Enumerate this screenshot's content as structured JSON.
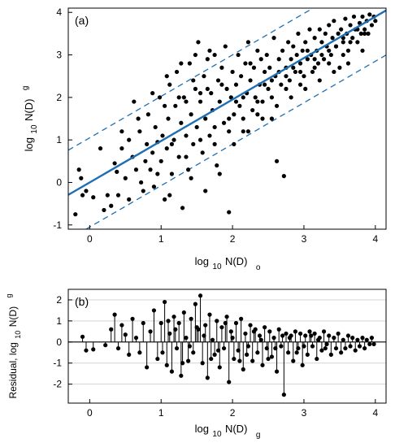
{
  "chart_data": [
    {
      "type": "scatter",
      "panel_label": "(a)",
      "xlabel": {
        "prefix": "log",
        "sub": "10",
        "main": "N(D)",
        "tail": "o"
      },
      "ylabel": {
        "prefix": "log",
        "sub": "10",
        "main": "N(D)",
        "tail": "g"
      },
      "xlim": [
        -0.3,
        4.15
      ],
      "ylim": [
        -1.1,
        4.1
      ],
      "xticks": [
        "0",
        "1",
        "2",
        "3",
        "4"
      ],
      "yticks": [
        "-1",
        "0",
        "1",
        "2",
        "3",
        "4"
      ],
      "grid": false,
      "colors": {
        "points": "#000000",
        "fit": "#1f6fb4",
        "bounds": "#1f6fb4"
      },
      "fit_line": {
        "slope": 0.975,
        "intercept": 0.0,
        "style": "solid"
      },
      "bound_lines": [
        {
          "offset": 1.05,
          "style": "dashed"
        },
        {
          "offset": -1.05,
          "style": "dashed"
        }
      ],
      "points": [
        [
          -0.2,
          -0.75
        ],
        [
          -0.15,
          0.3
        ],
        [
          -0.12,
          0.1
        ],
        [
          -0.1,
          -0.3
        ],
        [
          -0.05,
          -0.2
        ],
        [
          0.05,
          -0.35
        ],
        [
          0.2,
          -0.65
        ],
        [
          0.25,
          -0.3
        ],
        [
          0.3,
          -0.55
        ],
        [
          0.35,
          0.45
        ],
        [
          0.38,
          0.25
        ],
        [
          0.4,
          -0.3
        ],
        [
          0.45,
          0.8
        ],
        [
          0.5,
          0.1
        ],
        [
          0.55,
          -0.4
        ],
        [
          0.55,
          1.0
        ],
        [
          0.6,
          0.6
        ],
        [
          0.65,
          0.3
        ],
        [
          0.7,
          1.2
        ],
        [
          0.72,
          0.0
        ],
        [
          0.75,
          -0.2
        ],
        [
          0.78,
          0.5
        ],
        [
          0.8,
          0.9
        ],
        [
          0.82,
          1.6
        ],
        [
          0.85,
          0.3
        ],
        [
          0.88,
          0.7
        ],
        [
          0.9,
          -0.1
        ],
        [
          0.92,
          1.3
        ],
        [
          0.95,
          0.95
        ],
        [
          0.98,
          2.0
        ],
        [
          1.0,
          0.5
        ],
        [
          1.02,
          1.1
        ],
        [
          1.05,
          -0.4
        ],
        [
          1.08,
          0.8
        ],
        [
          1.1,
          1.5
        ],
        [
          1.12,
          2.3
        ],
        [
          1.15,
          0.2
        ],
        [
          1.18,
          1.0
        ],
        [
          1.2,
          1.8
        ],
        [
          1.22,
          2.6
        ],
        [
          1.25,
          0.6
        ],
        [
          1.28,
          1.4
        ],
        [
          1.3,
          -0.6
        ],
        [
          1.32,
          2.0
        ],
        [
          1.35,
          1.1
        ],
        [
          1.38,
          0.3
        ],
        [
          1.4,
          2.8
        ],
        [
          1.42,
          1.6
        ],
        [
          1.45,
          0.9
        ],
        [
          1.48,
          2.2
        ],
        [
          1.5,
          1.3
        ],
        [
          1.52,
          3.3
        ],
        [
          1.55,
          1.9
        ],
        [
          1.58,
          0.7
        ],
        [
          1.6,
          2.5
        ],
        [
          1.62,
          1.5
        ],
        [
          1.65,
          2.9
        ],
        [
          1.68,
          1.1
        ],
        [
          1.7,
          2.1
        ],
        [
          1.72,
          1.7
        ],
        [
          1.75,
          3.0
        ],
        [
          1.78,
          0.4
        ],
        [
          1.8,
          2.4
        ],
        [
          1.82,
          1.9
        ],
        [
          1.85,
          2.7
        ],
        [
          1.88,
          1.4
        ],
        [
          1.9,
          3.2
        ],
        [
          1.92,
          2.2
        ],
        [
          1.95,
          -0.7
        ],
        [
          1.98,
          2.0
        ],
        [
          2.0,
          2.6
        ],
        [
          2.02,
          1.6
        ],
        [
          2.05,
          2.3
        ],
        [
          2.08,
          3.0
        ],
        [
          2.1,
          1.8
        ],
        [
          2.12,
          2.5
        ],
        [
          2.15,
          1.2
        ],
        [
          2.18,
          2.8
        ],
        [
          2.2,
          2.1
        ],
        [
          2.22,
          3.3
        ],
        [
          2.25,
          2.4
        ],
        [
          2.28,
          1.7
        ],
        [
          2.3,
          2.7
        ],
        [
          2.32,
          2.0
        ],
        [
          2.35,
          3.1
        ],
        [
          2.38,
          2.3
        ],
        [
          2.4,
          2.9
        ],
        [
          2.42,
          1.9
        ],
        [
          2.45,
          2.6
        ],
        [
          2.48,
          3.0
        ],
        [
          2.5,
          2.2
        ],
        [
          2.52,
          2.7
        ],
        [
          2.55,
          1.5
        ],
        [
          2.58,
          3.4
        ],
        [
          2.6,
          2.5
        ],
        [
          2.62,
          0.5
        ],
        [
          2.65,
          2.9
        ],
        [
          2.68,
          2.3
        ],
        [
          2.7,
          3.1
        ],
        [
          2.72,
          0.15
        ],
        [
          2.75,
          2.7
        ],
        [
          2.78,
          3.3
        ],
        [
          2.8,
          2.4
        ],
        [
          2.82,
          2.9
        ],
        [
          2.85,
          3.2
        ],
        [
          2.88,
          2.6
        ],
        [
          2.9,
          3.0
        ],
        [
          2.92,
          3.5
        ],
        [
          2.95,
          2.8
        ],
        [
          2.98,
          3.1
        ],
        [
          3.0,
          2.5
        ],
        [
          3.02,
          3.3
        ],
        [
          3.05,
          2.9
        ],
        [
          3.08,
          3.6
        ],
        [
          3.1,
          3.0
        ],
        [
          3.12,
          2.6
        ],
        [
          3.15,
          3.4
        ],
        [
          3.18,
          3.1
        ],
        [
          3.2,
          2.8
        ],
        [
          3.22,
          3.6
        ],
        [
          3.25,
          3.3
        ],
        [
          3.28,
          2.9
        ],
        [
          3.3,
          3.5
        ],
        [
          3.32,
          3.2
        ],
        [
          3.35,
          3.7
        ],
        [
          3.38,
          3.0
        ],
        [
          3.4,
          3.4
        ],
        [
          3.42,
          3.8
        ],
        [
          3.45,
          3.2
        ],
        [
          3.48,
          3.5
        ],
        [
          3.5,
          2.7
        ],
        [
          3.52,
          3.6
        ],
        [
          3.55,
          3.3
        ],
        [
          3.58,
          3.85
        ],
        [
          3.6,
          3.5
        ],
        [
          3.62,
          3.1
        ],
        [
          3.65,
          3.7
        ],
        [
          3.68,
          3.4
        ],
        [
          3.7,
          3.9
        ],
        [
          3.72,
          3.6
        ],
        [
          3.75,
          3.3
        ],
        [
          3.78,
          3.75
        ],
        [
          3.8,
          3.5
        ],
        [
          3.82,
          3.9
        ],
        [
          3.85,
          3.6
        ],
        [
          3.88,
          3.8
        ],
        [
          3.9,
          3.5
        ],
        [
          3.92,
          3.95
        ],
        [
          3.95,
          3.7
        ],
        [
          3.98,
          3.9
        ],
        [
          1.35,
          1.9
        ],
        [
          1.55,
          2.1
        ],
        [
          1.75,
          1.3
        ],
        [
          1.95,
          1.5
        ],
        [
          2.15,
          2.0
        ],
        [
          2.35,
          1.6
        ],
        [
          2.55,
          2.0
        ],
        [
          2.75,
          2.2
        ],
        [
          2.95,
          2.3
        ],
        [
          3.15,
          2.7
        ],
        [
          3.35,
          2.8
        ],
        [
          3.55,
          3.0
        ],
        [
          1.05,
          1.8
        ],
        [
          1.25,
          2.0
        ],
        [
          1.45,
          2.4
        ],
        [
          1.65,
          2.2
        ],
        [
          1.85,
          2.3
        ],
        [
          2.05,
          1.9
        ],
        [
          2.25,
          2.8
        ],
        [
          2.45,
          2.3
        ],
        [
          2.65,
          2.6
        ],
        [
          2.85,
          2.7
        ],
        [
          3.05,
          3.1
        ],
        [
          3.25,
          3.0
        ],
        [
          3.45,
          3.2
        ],
        [
          3.65,
          3.3
        ],
        [
          3.85,
          3.5
        ],
        [
          0.95,
          0.2
        ],
        [
          1.15,
          0.9
        ],
        [
          1.35,
          0.6
        ],
        [
          1.55,
          1.0
        ],
        [
          1.75,
          0.9
        ],
        [
          1.95,
          1.2
        ],
        [
          2.15,
          1.5
        ],
        [
          2.35,
          1.9
        ],
        [
          2.55,
          2.4
        ],
        [
          2.75,
          2.5
        ],
        [
          2.95,
          2.6
        ],
        [
          3.15,
          2.9
        ],
        [
          3.35,
          3.1
        ],
        [
          3.55,
          3.4
        ],
        [
          3.75,
          3.6
        ],
        [
          0.68,
          1.5
        ],
        [
          0.88,
          2.1
        ],
        [
          1.08,
          2.5
        ],
        [
          1.28,
          2.8
        ],
        [
          1.48,
          3.0
        ],
        [
          1.68,
          3.1
        ],
        [
          0.15,
          0.8
        ],
        [
          0.45,
          1.2
        ],
        [
          0.62,
          1.9
        ],
        [
          1.12,
          -0.3
        ],
        [
          1.42,
          0.1
        ],
        [
          1.62,
          -0.2
        ],
        [
          1.82,
          0.2
        ],
        [
          2.02,
          0.9
        ],
        [
          2.22,
          1.2
        ],
        [
          2.42,
          1.5
        ],
        [
          2.62,
          1.8
        ],
        [
          2.82,
          2.0
        ],
        [
          3.02,
          2.2
        ],
        [
          3.22,
          2.4
        ],
        [
          3.42,
          2.6
        ],
        [
          3.62,
          2.8
        ],
        [
          3.82,
          3.1
        ],
        [
          4.0,
          3.8
        ]
      ]
    },
    {
      "type": "scatter",
      "style": "stem",
      "panel_label": "(b)",
      "xlabel": {
        "prefix": "log",
        "sub": "10",
        "main": "N(D)",
        "tail": "g"
      },
      "ylabel": {
        "prefix": "Residual, log",
        "sub": "10",
        "main": "N(D)",
        "tail": "g"
      },
      "xlim": [
        -0.3,
        4.15
      ],
      "ylim": [
        -2.9,
        2.5
      ],
      "xticks": [
        "0",
        "1",
        "2",
        "3",
        "4"
      ],
      "yticks": [
        "-2",
        "-1",
        "0",
        "1",
        "2"
      ],
      "grid": true,
      "colors": {
        "points": "#000000",
        "zero_line": "#000000",
        "grid": "#d3d3d3"
      },
      "points": [
        [
          -0.1,
          0.25
        ],
        [
          -0.05,
          -0.4
        ],
        [
          0.05,
          -0.35
        ],
        [
          0.22,
          -0.15
        ],
        [
          0.3,
          0.6
        ],
        [
          0.35,
          1.3
        ],
        [
          0.4,
          -0.3
        ],
        [
          0.45,
          0.8
        ],
        [
          0.5,
          0.35
        ],
        [
          0.55,
          -0.6
        ],
        [
          0.6,
          1.1
        ],
        [
          0.65,
          0.2
        ],
        [
          0.7,
          -0.5
        ],
        [
          0.75,
          0.9
        ],
        [
          0.8,
          -1.2
        ],
        [
          0.85,
          0.5
        ],
        [
          0.9,
          1.5
        ],
        [
          0.95,
          -0.8
        ],
        [
          1.0,
          0.9
        ],
        [
          1.05,
          1.9
        ],
        [
          1.08,
          -1.1
        ],
        [
          1.12,
          0.4
        ],
        [
          1.15,
          -1.4
        ],
        [
          1.18,
          1.2
        ],
        [
          1.22,
          -0.3
        ],
        [
          1.25,
          0.9
        ],
        [
          1.28,
          -1.6
        ],
        [
          1.32,
          1.4
        ],
        [
          1.35,
          0.2
        ],
        [
          1.38,
          -0.9
        ],
        [
          1.42,
          1.1
        ],
        [
          1.45,
          -0.5
        ],
        [
          1.48,
          1.8
        ],
        [
          1.52,
          0.6
        ],
        [
          1.55,
          2.2
        ],
        [
          1.58,
          -1.0
        ],
        [
          1.62,
          0.8
        ],
        [
          1.65,
          -1.7
        ],
        [
          1.68,
          1.3
        ],
        [
          1.72,
          0.1
        ],
        [
          1.75,
          -0.6
        ],
        [
          1.78,
          1.0
        ],
        [
          1.82,
          -1.2
        ],
        [
          1.85,
          0.7
        ],
        [
          1.88,
          -0.3
        ],
        [
          1.92,
          1.2
        ],
        [
          1.95,
          -1.9
        ],
        [
          1.98,
          0.5
        ],
        [
          2.02,
          -0.8
        ],
        [
          2.05,
          0.9
        ],
        [
          2.08,
          -0.4
        ],
        [
          2.12,
          1.1
        ],
        [
          2.15,
          -1.3
        ],
        [
          2.18,
          0.4
        ],
        [
          2.22,
          -0.2
        ],
        [
          2.25,
          0.8
        ],
        [
          2.28,
          -0.9
        ],
        [
          2.32,
          0.6
        ],
        [
          2.35,
          -0.5
        ],
        [
          2.38,
          0.3
        ],
        [
          2.42,
          -1.1
        ],
        [
          2.45,
          0.7
        ],
        [
          2.48,
          -0.3
        ],
        [
          2.52,
          0.5
        ],
        [
          2.55,
          -0.7
        ],
        [
          2.58,
          0.2
        ],
        [
          2.62,
          -1.4
        ],
        [
          2.65,
          0.6
        ],
        [
          2.68,
          -0.2
        ],
        [
          2.72,
          -2.5
        ],
        [
          2.75,
          0.4
        ],
        [
          2.78,
          -0.5
        ],
        [
          2.82,
          0.3
        ],
        [
          2.85,
          -0.9
        ],
        [
          2.88,
          0.5
        ],
        [
          2.92,
          -0.3
        ],
        [
          2.95,
          0.4
        ],
        [
          2.98,
          -1.1
        ],
        [
          3.02,
          0.3
        ],
        [
          3.05,
          -0.6
        ],
        [
          3.08,
          0.5
        ],
        [
          3.12,
          -0.2
        ],
        [
          3.15,
          0.4
        ],
        [
          3.18,
          -0.8
        ],
        [
          3.22,
          0.2
        ],
        [
          3.25,
          -0.4
        ],
        [
          3.28,
          0.5
        ],
        [
          3.32,
          -0.1
        ],
        [
          3.35,
          0.3
        ],
        [
          3.38,
          -0.6
        ],
        [
          3.42,
          0.2
        ],
        [
          3.45,
          -0.3
        ],
        [
          3.48,
          0.4
        ],
        [
          3.52,
          -0.5
        ],
        [
          3.55,
          0.1
        ],
        [
          3.58,
          -0.3
        ],
        [
          3.62,
          0.3
        ],
        [
          3.65,
          -0.2
        ],
        [
          3.68,
          0.2
        ],
        [
          3.72,
          -0.4
        ],
        [
          3.75,
          0.1
        ],
        [
          3.78,
          -0.2
        ],
        [
          3.82,
          0.2
        ],
        [
          3.85,
          -0.3
        ],
        [
          3.88,
          0.1
        ],
        [
          3.92,
          -0.1
        ],
        [
          3.95,
          0.2
        ],
        [
          3.98,
          -0.1
        ],
        [
          1.02,
          -0.5
        ],
        [
          1.2,
          0.6
        ],
        [
          1.4,
          -0.2
        ],
        [
          1.6,
          0.3
        ],
        [
          1.8,
          -0.4
        ],
        [
          2.0,
          0.2
        ],
        [
          2.2,
          -0.6
        ],
        [
          2.4,
          0.1
        ],
        [
          2.6,
          -0.3
        ],
        [
          2.8,
          0.2
        ],
        [
          3.0,
          -0.2
        ],
        [
          3.2,
          0.1
        ],
        [
          1.1,
          1.0
        ],
        [
          1.3,
          -1.0
        ],
        [
          1.5,
          0.7
        ],
        [
          1.7,
          -0.8
        ],
        [
          1.9,
          0.9
        ],
        [
          2.1,
          -0.9
        ],
        [
          2.3,
          0.5
        ],
        [
          2.5,
          -0.8
        ],
        [
          2.7,
          0.3
        ],
        [
          2.9,
          -0.5
        ],
        [
          3.1,
          0.3
        ],
        [
          3.3,
          -0.3
        ]
      ]
    }
  ]
}
